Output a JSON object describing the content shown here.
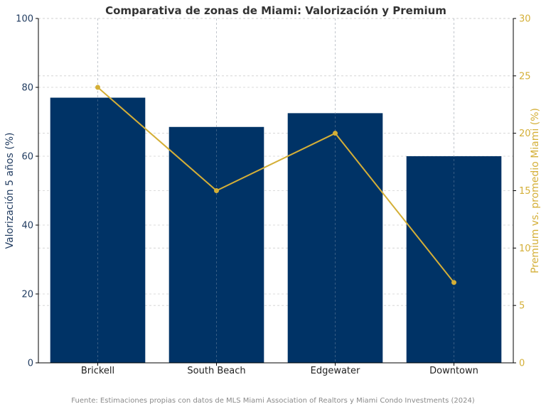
{
  "chart_data": {
    "type": "bar+line",
    "title": "Comparativa de zonas de Miami: Valorización y Premium",
    "categories": [
      "Brickell",
      "South Beach",
      "Edgewater",
      "Downtown"
    ],
    "series": [
      {
        "name": "Valorización 5 años (%)",
        "type": "bar",
        "axis": "left",
        "values": [
          77,
          68.5,
          72.5,
          60
        ]
      },
      {
        "name": "Premium vs. promedio Miami (%)",
        "type": "line",
        "axis": "right",
        "values": [
          24,
          15,
          20,
          7
        ]
      }
    ],
    "ylabel": "Valorización 5 años (%)",
    "ylabel_right": "Premium vs. promedio Miami (%)",
    "ylim": [
      0,
      100
    ],
    "ylim_right": [
      0,
      30
    ],
    "yticks": [
      "0",
      "20",
      "40",
      "60",
      "80",
      "100"
    ],
    "yticks_right": [
      "0",
      "5",
      "10",
      "15",
      "20",
      "25",
      "30"
    ],
    "grid": true,
    "colors": {
      "bar": "#003366",
      "line": "#D4AF37",
      "left_axis": "#1f3a5f",
      "right_axis": "#D4AF37"
    }
  },
  "source_note": "Fuente: Estimaciones propias con datos de MLS Miami Association of Realtors y Miami Condo Investments (2024)"
}
